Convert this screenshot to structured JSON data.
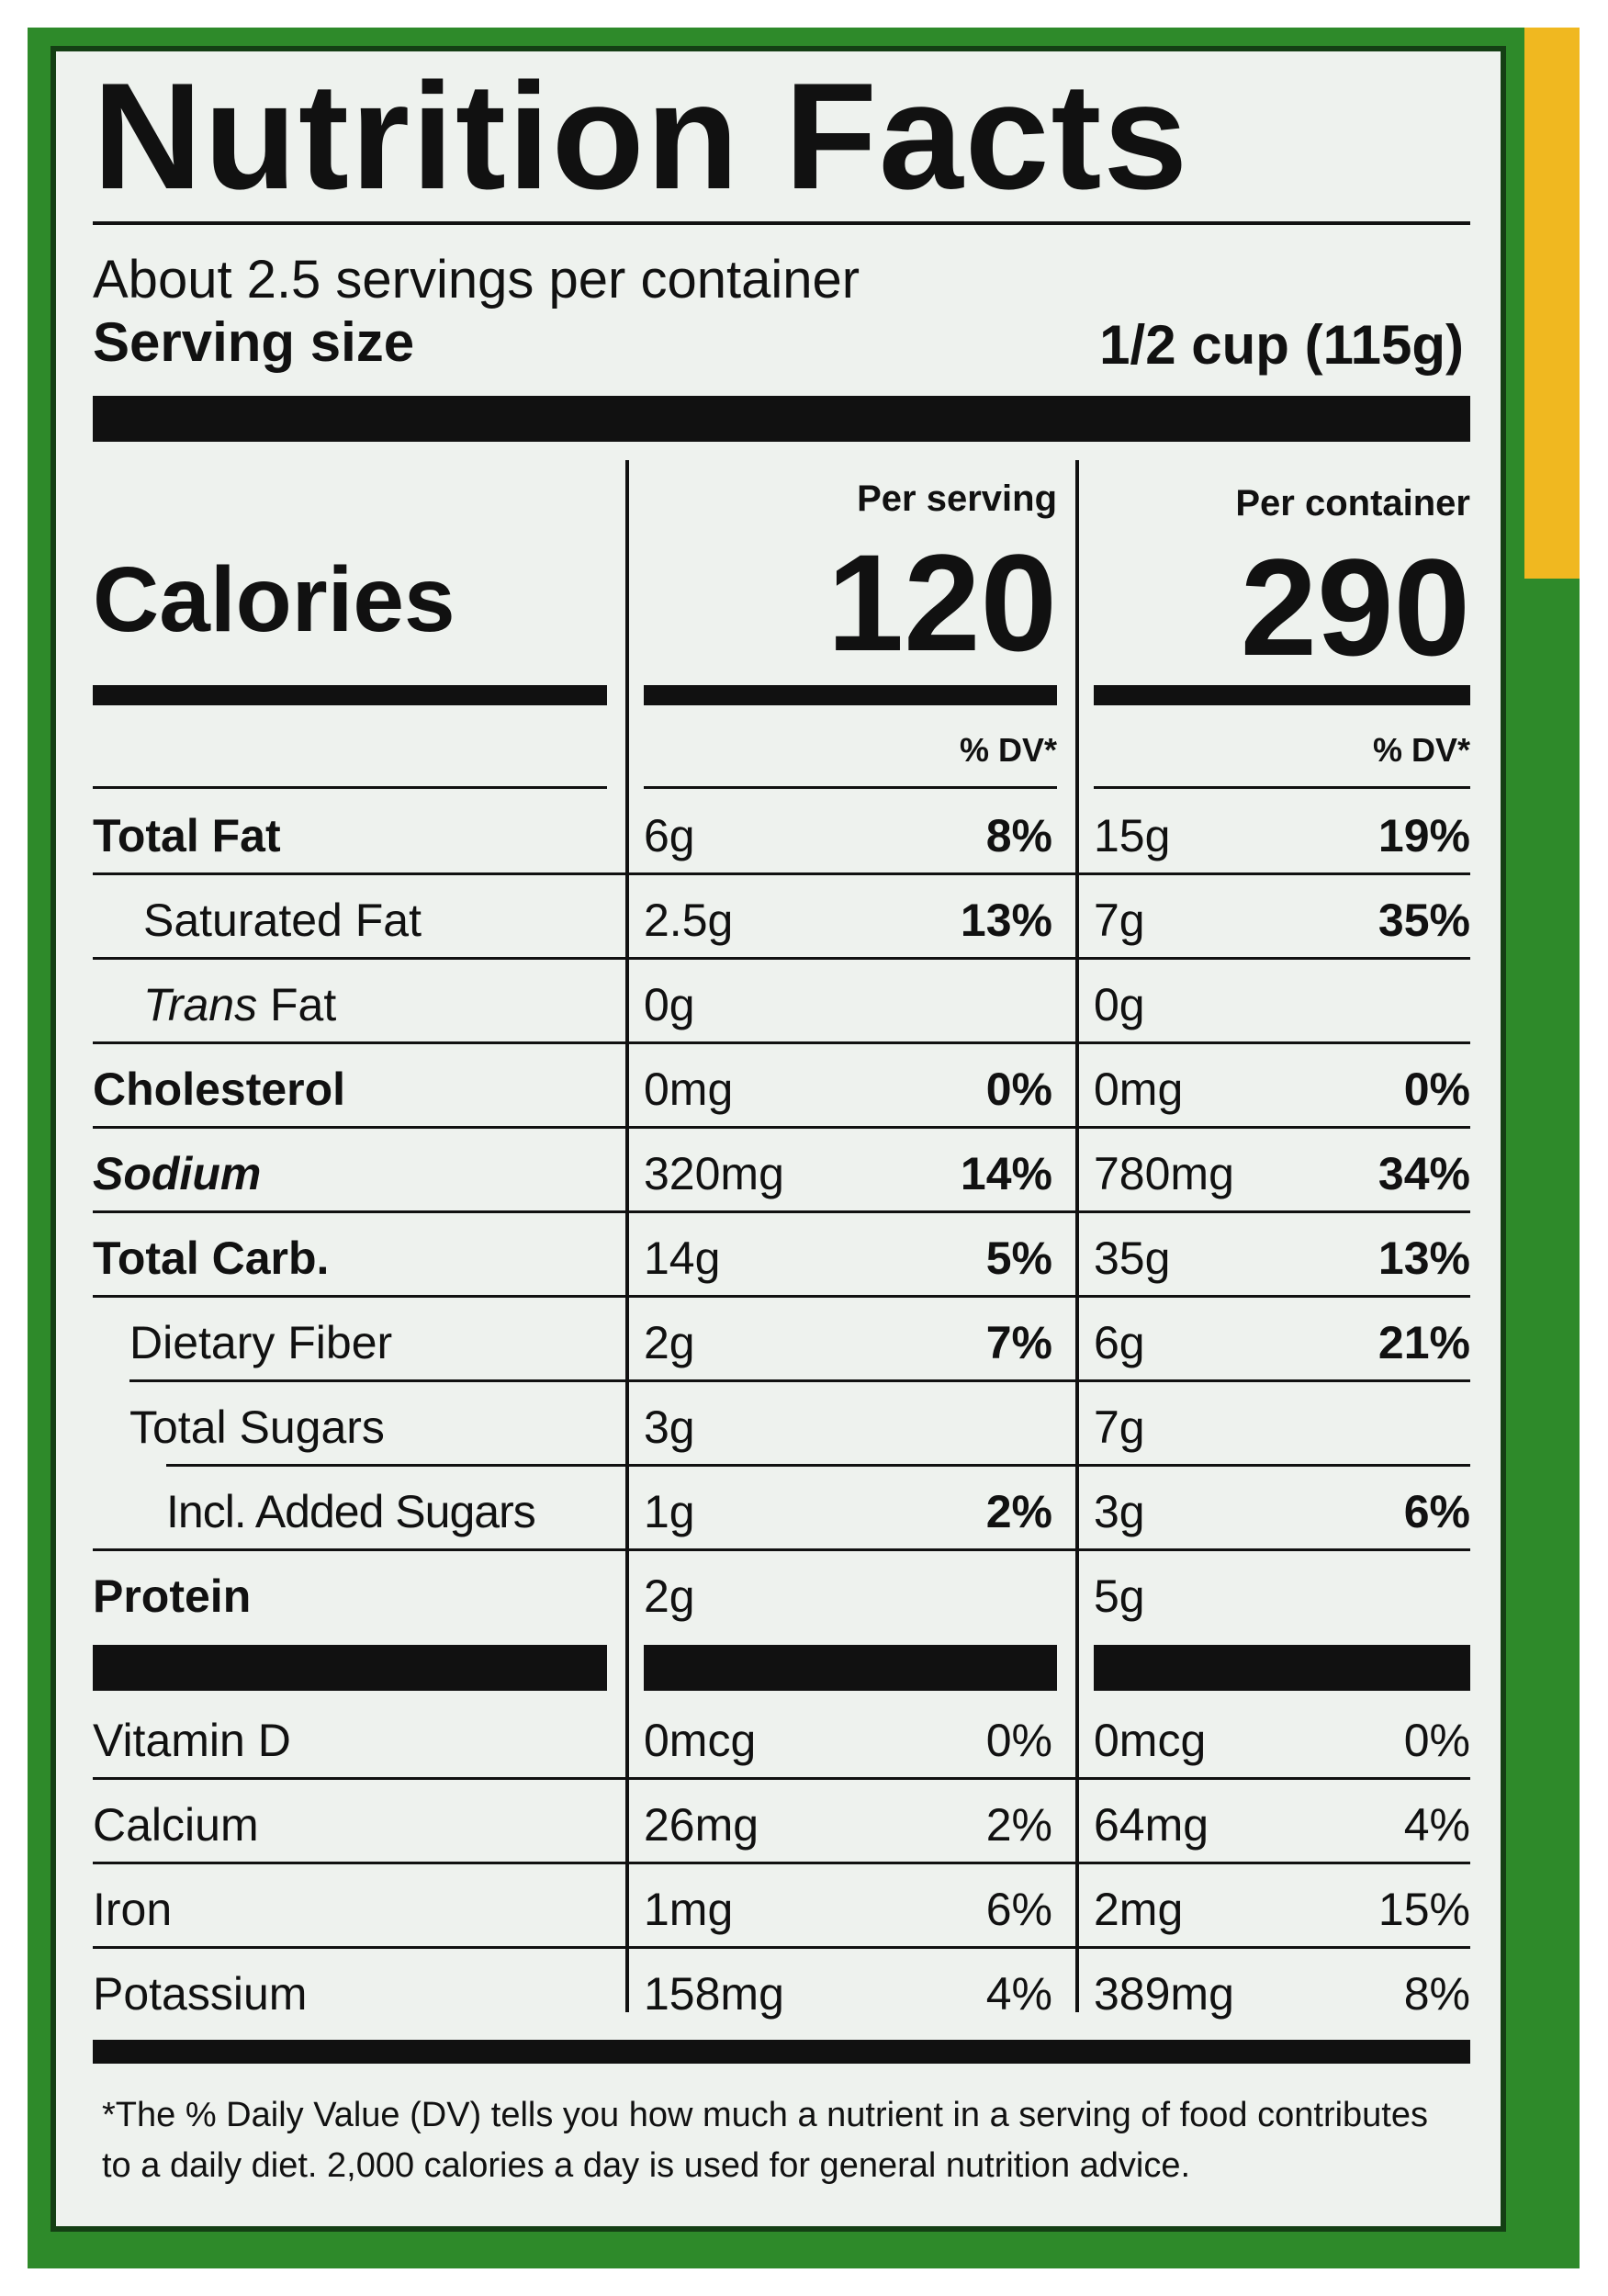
{
  "title": "Nutrition Facts",
  "servings_per_container": "About 2.5 servings per container",
  "serving_size_label": "Serving size",
  "serving_size_value": "1/2 cup (115g)",
  "per_serving_label": "Per serving",
  "per_container_label": "Per container",
  "calories_label": "Calories",
  "calories_serving": "120",
  "calories_container": "290",
  "dv_label": "% DV*",
  "nutrients": [
    {
      "name": "Total Fat",
      "s_amt": "6g",
      "s_dv": "8%",
      "c_amt": "15g",
      "c_dv": "19%"
    },
    {
      "name": "Saturated Fat",
      "s_amt": "2.5g",
      "s_dv": "13%",
      "c_amt": "7g",
      "c_dv": "35%"
    },
    {
      "name_italic": "Trans",
      "name_rest": " Fat",
      "s_amt": "0g",
      "s_dv": "",
      "c_amt": "0g",
      "c_dv": ""
    },
    {
      "name": "Cholesterol",
      "s_amt": "0mg",
      "s_dv": "0%",
      "c_amt": "0mg",
      "c_dv": "0%"
    },
    {
      "name": "Sodium",
      "s_amt": "320mg",
      "s_dv": "14%",
      "c_amt": "780mg",
      "c_dv": "34%"
    },
    {
      "name": "Total Carb.",
      "s_amt": "14g",
      "s_dv": "5%",
      "c_amt": "35g",
      "c_dv": "13%"
    },
    {
      "name": "Dietary Fiber",
      "s_amt": "2g",
      "s_dv": "7%",
      "c_amt": "6g",
      "c_dv": "21%"
    },
    {
      "name": "Total Sugars",
      "s_amt": "3g",
      "s_dv": "",
      "c_amt": "7g",
      "c_dv": ""
    },
    {
      "name": "Incl. Added Sugars",
      "s_amt": "1g",
      "s_dv": "2%",
      "c_amt": "3g",
      "c_dv": "6%"
    },
    {
      "name": "Protein",
      "s_amt": "2g",
      "s_dv": "",
      "c_amt": "5g",
      "c_dv": ""
    }
  ],
  "vitamins": [
    {
      "name": "Vitamin D",
      "s_amt": "0mcg",
      "s_dv": "0%",
      "c_amt": "0mcg",
      "c_dv": "0%"
    },
    {
      "name": "Calcium",
      "s_amt": "26mg",
      "s_dv": "2%",
      "c_amt": "64mg",
      "c_dv": "4%"
    },
    {
      "name": "Iron",
      "s_amt": "1mg",
      "s_dv": "6%",
      "c_amt": "2mg",
      "c_dv": "15%"
    },
    {
      "name": "Potassium",
      "s_amt": "158mg",
      "s_dv": "4%",
      "c_amt": "389mg",
      "c_dv": "8%"
    }
  ],
  "footnote": "*The % Daily Value (DV) tells you how much a nutrient in a serving of food contributes to a daily diet. 2,000 calories a day is used for general nutrition advice.",
  "colors": {
    "package_green": "#2e8a2a",
    "package_yellow": "#f0b820",
    "label_bg": "#eef2ee",
    "ink": "#111111"
  }
}
